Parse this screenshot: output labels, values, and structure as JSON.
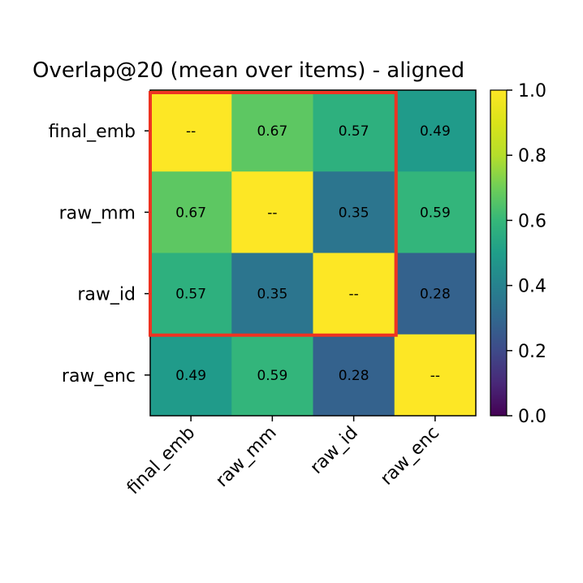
{
  "chart_data": {
    "type": "heatmap",
    "title": "Overlap@20 (mean over items) - aligned",
    "xlabel": "",
    "ylabel": "",
    "rows": [
      "final_emb",
      "raw_mm",
      "raw_id",
      "raw_enc"
    ],
    "columns": [
      "final_emb",
      "raw_mm",
      "raw_id",
      "raw_enc"
    ],
    "values": [
      [
        1.0,
        0.67,
        0.57,
        0.49
      ],
      [
        0.67,
        1.0,
        0.35,
        0.59
      ],
      [
        0.57,
        0.35,
        1.0,
        0.28
      ],
      [
        0.49,
        0.59,
        0.28,
        1.0
      ]
    ],
    "cell_labels": [
      [
        "--",
        "0.67",
        "0.57",
        "0.49"
      ],
      [
        "0.67",
        "--",
        "0.35",
        "0.59"
      ],
      [
        "0.57",
        "0.35",
        "--",
        "0.28"
      ],
      [
        "0.49",
        "0.59",
        "0.28",
        "--"
      ]
    ],
    "colormap": "viridis",
    "vmin": 0.0,
    "vmax": 1.0,
    "colorbar_ticks": [
      "0.0",
      "0.2",
      "0.4",
      "0.6",
      "0.8",
      "1.0"
    ],
    "highlight": {
      "rows": [
        0,
        2
      ],
      "columns": [
        0,
        2
      ],
      "color": "#ee3322"
    }
  }
}
